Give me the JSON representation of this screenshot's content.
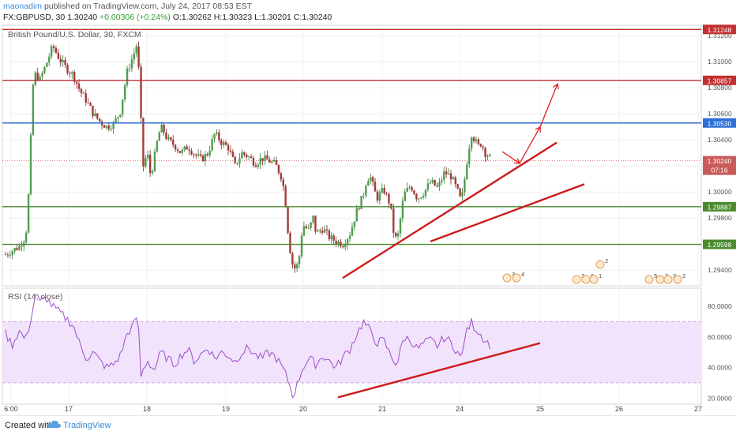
{
  "header": {
    "author": "maonadim",
    "published_text": "published on TradingView.com, July 24, 2017 08:53 EST",
    "symbol": "FX:GBPUSD, 30",
    "last": "1.30240",
    "change": "+0.00306 (+0.24%)",
    "ohlc": "O:1.30262 H:1.30323 L:1.30201 C:1.30240"
  },
  "footer": {
    "created_with": "Created with",
    "brand": "TradingView"
  },
  "colors": {
    "candle_up": "#3a7a3a",
    "candle_down": "#7a2a2a",
    "resistance": "#c03030",
    "blue_level": "#2d6fd6",
    "support": "#4b8a2f",
    "trend": "#cc1a1a",
    "rsi_line": "#9c4ecb",
    "rsi_band": "#f1e3fb"
  },
  "chart_data": [
    {
      "type": "candlestick",
      "title": "British Pound/U.S. Dollar, 30, FXCM",
      "x_tick_labels": [
        "6:00",
        "17",
        "18",
        "19",
        "20",
        "21",
        "24",
        "25",
        "26",
        "27"
      ],
      "y_tick_labels": [
        "1.31200",
        "1.31000",
        "1.30800",
        "1.30600",
        "1.30400",
        "1.30200",
        "1.30000",
        "1.29800",
        "1.29600",
        "1.29400"
      ],
      "ylim": [
        1.2928,
        1.3128
      ],
      "price_lines": [
        {
          "label": "1.31248",
          "value": 1.31248,
          "kind": "resistance"
        },
        {
          "label": "1.30857",
          "value": 1.30857,
          "kind": "resistance"
        },
        {
          "label": "1.30530",
          "value": 1.3053,
          "kind": "blue"
        },
        {
          "label": "1.29887",
          "value": 1.29887,
          "kind": "support"
        },
        {
          "label": "1.29598",
          "value": 1.29598,
          "kind": "support"
        }
      ],
      "current_price": {
        "label": "1.30240",
        "value": 1.3024,
        "countdown": "07:16"
      },
      "close_path": [
        [
          0,
          1.2952
        ],
        [
          2,
          1.2958
        ],
        [
          3,
          1.2966
        ],
        [
          3.5,
          1.3005
        ],
        [
          4,
          1.308
        ],
        [
          4.5,
          1.3092
        ],
        [
          5,
          1.3085
        ],
        [
          6,
          1.3098
        ],
        [
          7,
          1.3112
        ],
        [
          8,
          1.3102
        ],
        [
          9,
          1.3095
        ],
        [
          10,
          1.309
        ],
        [
          11,
          1.3078
        ],
        [
          12,
          1.307
        ],
        [
          13,
          1.306
        ],
        [
          14,
          1.3054
        ],
        [
          15,
          1.305
        ],
        [
          16,
          1.3052
        ],
        [
          17,
          1.3062
        ],
        [
          18,
          1.3092
        ],
        [
          19,
          1.3106
        ],
        [
          19.6,
          1.3116
        ],
        [
          19.8,
          1.308
        ],
        [
          20,
          1.306
        ],
        [
          20.4,
          1.302
        ],
        [
          21,
          1.303
        ],
        [
          21.5,
          1.3012
        ],
        [
          22,
          1.3025
        ],
        [
          22.5,
          1.304
        ],
        [
          23,
          1.305
        ],
        [
          23.5,
          1.3046
        ],
        [
          24,
          1.304
        ],
        [
          25,
          1.3036
        ],
        [
          26,
          1.303
        ],
        [
          27,
          1.3035
        ],
        [
          28,
          1.3029
        ],
        [
          29,
          1.3025
        ],
        [
          30,
          1.303
        ],
        [
          31,
          1.3045
        ],
        [
          32,
          1.3038
        ],
        [
          33,
          1.3034
        ],
        [
          34,
          1.302
        ],
        [
          35,
          1.303
        ],
        [
          36,
          1.3027
        ],
        [
          37,
          1.3022
        ],
        [
          38,
          1.3026
        ],
        [
          39,
          1.3024
        ],
        [
          40,
          1.3021
        ],
        [
          41,
          1.301
        ],
        [
          41.5,
          1.299
        ],
        [
          42,
          1.296
        ],
        [
          42.5,
          1.2945
        ],
        [
          43,
          1.294
        ],
        [
          43.5,
          1.295
        ],
        [
          44,
          1.2975
        ],
        [
          45,
          1.297
        ],
        [
          45.5,
          1.2982
        ],
        [
          46,
          1.2968
        ],
        [
          47,
          1.2972
        ],
        [
          48,
          1.2965
        ],
        [
          49,
          1.2962
        ],
        [
          50,
          1.296
        ],
        [
          51,
          1.2968
        ],
        [
          52,
          1.2985
        ],
        [
          53,
          1.2998
        ],
        [
          53.5,
          1.301
        ],
        [
          54,
          1.3012
        ],
        [
          55,
          1.2995
        ],
        [
          56,
          1.3002
        ],
        [
          57,
          1.299
        ],
        [
          57.5,
          1.2968
        ],
        [
          58,
          1.2962
        ],
        [
          59,
          1.2998
        ],
        [
          60,
          1.3005
        ],
        [
          61,
          1.2995
        ],
        [
          62,
          1.3
        ],
        [
          63,
          1.3008
        ],
        [
          64,
          1.3003
        ],
        [
          65,
          1.3015
        ],
        [
          66,
          1.3012
        ],
        [
          67,
          1.3
        ],
        [
          67.5,
          1.2992
        ],
        [
          68,
          1.301
        ],
        [
          68.5,
          1.303
        ],
        [
          69,
          1.3045
        ],
        [
          69.5,
          1.304
        ],
        [
          70,
          1.3035
        ],
        [
          70.5,
          1.3038
        ],
        [
          71,
          1.303
        ],
        [
          71.5,
          1.3028
        ],
        [
          72,
          1.3025
        ]
      ],
      "events": [
        {
          "label": "3",
          "index": 70
        },
        {
          "label": "4",
          "index": 71
        },
        {
          "label": "2",
          "index": 82
        },
        {
          "label": "3",
          "index": 80
        },
        {
          "label": "6",
          "index": 81
        },
        {
          "label": "1",
          "index": 82
        },
        {
          "label": "5",
          "index": 91
        },
        {
          "label": "2",
          "index": 93
        },
        {
          "label": "2",
          "index": 95
        },
        {
          "label": "2",
          "index": 96
        }
      ]
    },
    {
      "type": "line",
      "title": "RSI (14, close)",
      "y_tick_labels": [
        "80.0000",
        "60.0000",
        "40.0000",
        "20.0000"
      ],
      "ylim": [
        16,
        92
      ],
      "band": [
        30,
        70
      ],
      "rsi_path": [
        [
          0,
          62
        ],
        [
          1,
          55
        ],
        [
          2,
          64
        ],
        [
          3,
          58
        ],
        [
          4,
          77
        ],
        [
          4.5,
          90
        ],
        [
          5,
          82
        ],
        [
          6,
          86
        ],
        [
          7,
          80
        ],
        [
          8,
          76
        ],
        [
          9,
          72
        ],
        [
          10,
          68
        ],
        [
          11,
          55
        ],
        [
          12,
          46
        ],
        [
          13,
          50
        ],
        [
          14,
          44
        ],
        [
          15,
          40
        ],
        [
          16,
          42
        ],
        [
          17,
          48
        ],
        [
          18,
          62
        ],
        [
          19,
          68
        ],
        [
          19.6,
          76
        ],
        [
          20,
          34
        ],
        [
          21,
          45
        ],
        [
          22,
          38
        ],
        [
          23,
          50
        ],
        [
          24,
          46
        ],
        [
          25,
          42
        ],
        [
          26,
          48
        ],
        [
          27,
          52
        ],
        [
          28,
          44
        ],
        [
          29,
          49
        ],
        [
          30,
          53
        ],
        [
          31,
          46
        ],
        [
          32,
          50
        ],
        [
          33,
          48
        ],
        [
          34,
          44
        ],
        [
          35,
          50
        ],
        [
          36,
          53
        ],
        [
          37,
          48
        ],
        [
          38,
          46
        ],
        [
          39,
          50
        ],
        [
          40,
          47
        ],
        [
          41,
          40
        ],
        [
          42,
          30
        ],
        [
          42.5,
          22
        ],
        [
          43,
          26
        ],
        [
          44,
          40
        ],
        [
          45,
          46
        ],
        [
          46,
          42
        ],
        [
          47,
          48
        ],
        [
          48,
          44
        ],
        [
          49,
          40
        ],
        [
          50,
          47
        ],
        [
          51,
          52
        ],
        [
          52,
          62
        ],
        [
          53,
          70
        ],
        [
          54,
          64
        ],
        [
          55,
          56
        ],
        [
          56,
          58
        ],
        [
          57,
          48
        ],
        [
          58,
          42
        ],
        [
          59,
          60
        ],
        [
          60,
          58
        ],
        [
          61,
          52
        ],
        [
          62,
          56
        ],
        [
          63,
          58
        ],
        [
          64,
          54
        ],
        [
          65,
          60
        ],
        [
          66,
          56
        ],
        [
          67,
          50
        ],
        [
          67.5,
          44
        ],
        [
          68,
          60
        ],
        [
          69,
          70
        ],
        [
          69.5,
          66
        ],
        [
          70,
          64
        ],
        [
          71,
          58
        ],
        [
          72,
          54
        ]
      ]
    }
  ]
}
